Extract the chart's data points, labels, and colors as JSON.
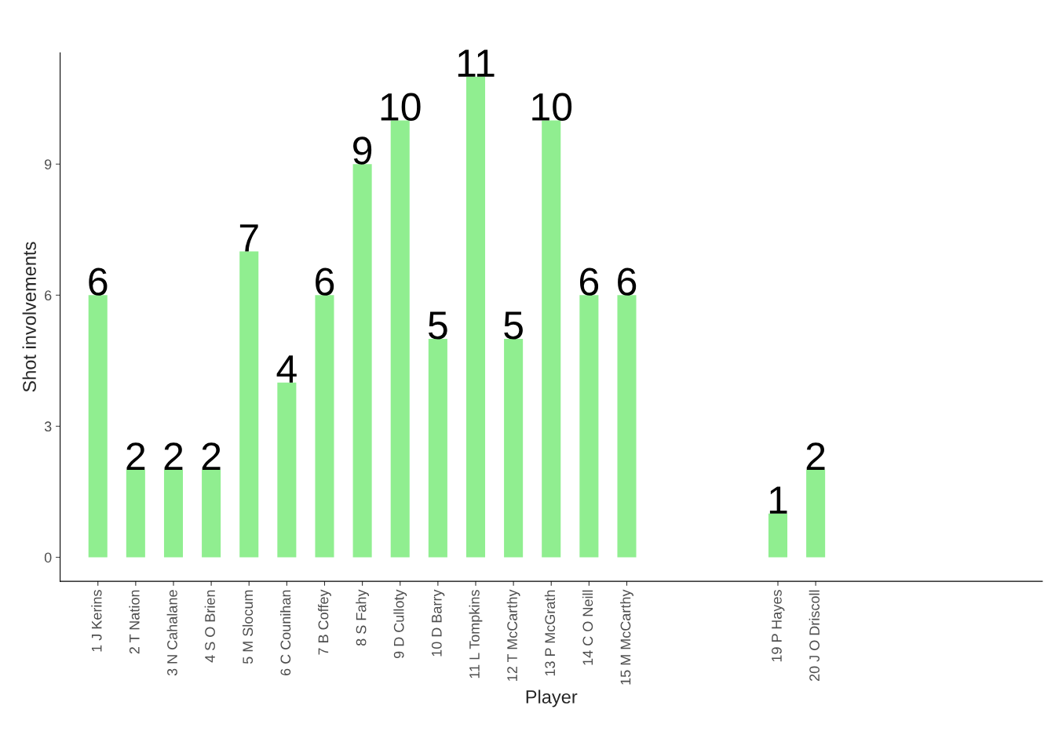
{
  "chart_data": {
    "type": "bar",
    "xlabel": "Player",
    "ylabel": "Shot involvements",
    "categories": [
      "1 J Kerins",
      "2 T Nation",
      "3 N Cahalane",
      "4 S O Brien",
      "5 M Slocum",
      "6 C Counihan",
      "7 B Coffey",
      "8 S Fahy",
      "9 D Culloty",
      "10 D Barry",
      "11 L Tompkins",
      "12 T McCarthy",
      "13 P McGrath",
      "14 C O Neill",
      "15 M McCarthy",
      null,
      null,
      null,
      "19 P Hayes",
      "20 J O Driscoll",
      null,
      null,
      null,
      null,
      null
    ],
    "values": [
      6,
      2,
      2,
      2,
      7,
      4,
      6,
      9,
      10,
      5,
      11,
      5,
      10,
      6,
      6,
      null,
      null,
      null,
      1,
      2,
      null,
      null,
      null,
      null,
      null
    ],
    "color": "#90ee90",
    "data_labels": true,
    "grid": false,
    "ylim": [
      -0.55,
      11.55
    ],
    "yticks": [
      0,
      3,
      6,
      9
    ]
  }
}
